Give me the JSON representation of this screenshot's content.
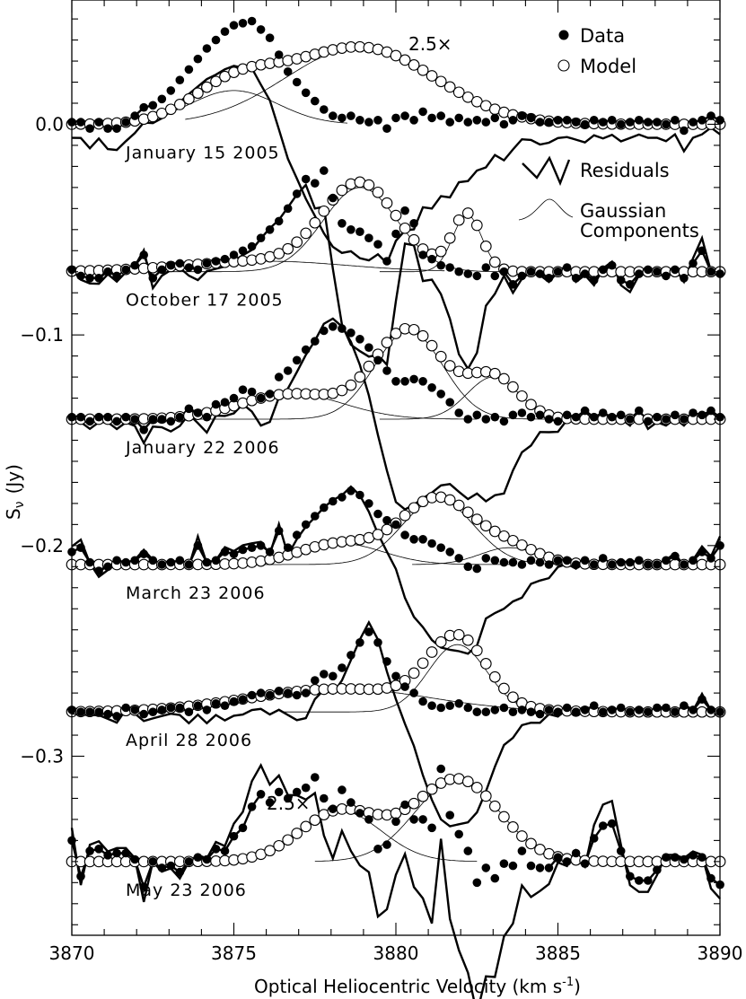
{
  "chart_data": {
    "type": "scatter",
    "xlabel": "Optical Heliocentric Velocity (km s",
    "xlabel_sup": "-1",
    "xlabel_close": ")",
    "ylabel": "S",
    "ylabel_sub": "ν",
    "ylabel_unit": "(Jy)",
    "xlim": [
      3870,
      3890
    ],
    "ylim": [
      -0.385,
      0.059
    ],
    "x_ticks": [
      3870,
      3875,
      3880,
      3885,
      3890
    ],
    "x_tick_labels": [
      "3870",
      "3875",
      "3880",
      "3885",
      "3890"
    ],
    "y_ticks": [
      0.0,
      -0.1,
      -0.2,
      -0.3
    ],
    "y_tick_labels": [
      "0.0",
      "−0.1",
      "−0.2",
      "−0.3"
    ],
    "legend": {
      "position": "top-right",
      "entries": [
        {
          "label": "Data",
          "marker": "filled-circle"
        },
        {
          "label": "Model",
          "marker": "open-circle"
        },
        {
          "label": "Residuals",
          "marker": "thick-line"
        },
        {
          "label": "Gaussian",
          "label2": "Components",
          "marker": "thin-line"
        }
      ]
    },
    "x_start": 3870,
    "x_step": 0.2778,
    "panels": [
      {
        "label": "January 15 2005",
        "offset": 0.0,
        "annotation": "2.5×",
        "residual_base": -0.008,
        "components": [
          {
            "amp": 0.0365,
            "center": 3878.9,
            "sigma": 2.3,
            "from": 3873.5,
            "to": 3885.5
          },
          {
            "amp": 0.016,
            "center": 3875.0,
            "sigma": 1.35,
            "from": 3871.5,
            "to": 3878.5
          }
        ],
        "data": [
          0.001,
          0.001,
          -0.002,
          0.001,
          -0.002,
          -0.002,
          0.001,
          0.004,
          0.008,
          0.009,
          0.012,
          0.016,
          0.021,
          0.026,
          0.031,
          0.036,
          0.04,
          0.044,
          0.047,
          0.048,
          0.049,
          0.045,
          0.041,
          0.033,
          0.025,
          0.02,
          0.015,
          0.011,
          0.007,
          0.004,
          0.003,
          0.004,
          0.002,
          0.001,
          0.002,
          -0.002,
          0.003,
          0.004,
          0.002,
          0.006,
          0.003,
          0.004,
          0.001,
          0.003,
          0.001,
          0.002,
          0.001,
          0.003,
          0.0,
          0.002,
          0.004,
          0.003,
          0.001,
          0.001,
          0.002,
          0.002,
          0.001,
          0.0,
          0.002,
          0.001,
          0.002,
          0.0,
          0.001,
          0.002,
          0.001,
          0.001,
          0.0,
          0.002,
          -0.003,
          0.001,
          0.002,
          0.004,
          0.002
        ]
      },
      {
        "label": "October 17 2005",
        "offset": -0.07,
        "residual_base": -0.07,
        "components": [
          {
            "amp": 0.04,
            "center": 3878.9,
            "sigma": 1.15,
            "from": 3871.5,
            "to": 3884.5
          },
          {
            "amp": 0.027,
            "center": 3882.2,
            "sigma": 0.45,
            "from": 3879.5,
            "to": 3884.5
          },
          {
            "amp": 0.005,
            "center": 3876.0,
            "sigma": 2.5,
            "from": 3870.5,
            "to": 3881.5
          }
        ],
        "data": [
          -0.069,
          -0.072,
          -0.073,
          -0.073,
          -0.07,
          -0.072,
          -0.069,
          -0.067,
          -0.062,
          -0.073,
          -0.069,
          -0.067,
          -0.066,
          -0.068,
          -0.069,
          -0.066,
          -0.065,
          -0.064,
          -0.062,
          -0.06,
          -0.058,
          -0.054,
          -0.05,
          -0.046,
          -0.04,
          -0.033,
          -0.026,
          -0.028,
          -0.022,
          -0.035,
          -0.047,
          -0.05,
          -0.051,
          -0.054,
          -0.057,
          -0.065,
          -0.052,
          -0.041,
          -0.047,
          -0.062,
          -0.064,
          -0.067,
          -0.068,
          -0.07,
          -0.071,
          -0.072,
          -0.068,
          -0.072,
          -0.07,
          -0.076,
          -0.072,
          -0.07,
          -0.071,
          -0.073,
          -0.07,
          -0.068,
          -0.073,
          -0.071,
          -0.074,
          -0.069,
          -0.067,
          -0.074,
          -0.076,
          -0.071,
          -0.069,
          -0.07,
          -0.072,
          -0.069,
          -0.073,
          -0.066,
          -0.06,
          -0.07,
          -0.071
        ]
      },
      {
        "label": "January 22 2006",
        "offset": -0.14,
        "residual_base": -0.143,
        "components": [
          {
            "amp": 0.042,
            "center": 3880.4,
            "sigma": 1.05,
            "from": 3872.5,
            "to": 3887.5
          },
          {
            "amp": 0.02,
            "center": 3883.0,
            "sigma": 0.8,
            "from": 3879.5,
            "to": 3886.5
          },
          {
            "amp": 0.012,
            "center": 3876.8,
            "sigma": 1.6,
            "from": 3872.5,
            "to": 3882.5
          }
        ],
        "data": [
          -0.139,
          -0.139,
          -0.141,
          -0.139,
          -0.139,
          -0.141,
          -0.139,
          -0.14,
          -0.145,
          -0.14,
          -0.14,
          -0.141,
          -0.139,
          -0.135,
          -0.137,
          -0.139,
          -0.133,
          -0.132,
          -0.13,
          -0.126,
          -0.127,
          -0.13,
          -0.128,
          -0.12,
          -0.117,
          -0.112,
          -0.107,
          -0.103,
          -0.098,
          -0.096,
          -0.097,
          -0.099,
          -0.102,
          -0.106,
          -0.112,
          -0.117,
          -0.122,
          -0.122,
          -0.121,
          -0.122,
          -0.125,
          -0.128,
          -0.132,
          -0.137,
          -0.14,
          -0.138,
          -0.14,
          -0.139,
          -0.141,
          -0.138,
          -0.137,
          -0.139,
          -0.138,
          -0.14,
          -0.141,
          -0.138,
          -0.139,
          -0.136,
          -0.139,
          -0.137,
          -0.139,
          -0.138,
          -0.14,
          -0.136,
          -0.141,
          -0.139,
          -0.14,
          -0.138,
          -0.14,
          -0.137,
          -0.138,
          -0.136,
          -0.139
        ]
      },
      {
        "label": "March 23 2006",
        "offset": -0.209,
        "residual_base": -0.21,
        "components": [
          {
            "amp": 0.031,
            "center": 3881.3,
            "sigma": 1.1,
            "from": 3873.5,
            "to": 3887.5
          },
          {
            "amp": 0.01,
            "center": 3878.3,
            "sigma": 1.3,
            "from": 3874.5,
            "to": 3883.5
          },
          {
            "amp": 0.008,
            "center": 3883.5,
            "sigma": 0.9,
            "from": 3880.5,
            "to": 3887.5
          }
        ],
        "data": [
          -0.203,
          -0.201,
          -0.208,
          -0.212,
          -0.21,
          -0.207,
          -0.208,
          -0.207,
          -0.204,
          -0.207,
          -0.209,
          -0.208,
          -0.207,
          -0.209,
          -0.2,
          -0.208,
          -0.207,
          -0.203,
          -0.204,
          -0.202,
          -0.201,
          -0.2,
          -0.203,
          -0.193,
          -0.201,
          -0.195,
          -0.19,
          -0.186,
          -0.182,
          -0.179,
          -0.177,
          -0.174,
          -0.176,
          -0.18,
          -0.185,
          -0.188,
          -0.19,
          -0.195,
          -0.197,
          -0.197,
          -0.199,
          -0.201,
          -0.203,
          -0.206,
          -0.21,
          -0.211,
          -0.206,
          -0.207,
          -0.208,
          -0.208,
          -0.209,
          -0.207,
          -0.208,
          -0.209,
          -0.207,
          -0.207,
          -0.209,
          -0.207,
          -0.209,
          -0.206,
          -0.209,
          -0.208,
          -0.208,
          -0.207,
          -0.209,
          -0.209,
          -0.207,
          -0.205,
          -0.209,
          -0.207,
          -0.203,
          -0.206,
          -0.2
        ]
      },
      {
        "label": "April 28 2006",
        "offset": -0.279,
        "residual_base": -0.28,
        "components": [
          {
            "amp": 0.032,
            "center": 3881.9,
            "sigma": 0.9,
            "from": 3876.5,
            "to": 3887.5
          },
          {
            "amp": 0.011,
            "center": 3878.3,
            "sigma": 2.8,
            "from": 3870.5,
            "to": 3884.5
          }
        ],
        "data": [
          -0.278,
          -0.279,
          -0.279,
          -0.279,
          -0.28,
          -0.281,
          -0.277,
          -0.278,
          -0.28,
          -0.279,
          -0.278,
          -0.277,
          -0.277,
          -0.279,
          -0.276,
          -0.278,
          -0.275,
          -0.276,
          -0.274,
          -0.273,
          -0.271,
          -0.27,
          -0.271,
          -0.269,
          -0.27,
          -0.271,
          -0.27,
          -0.264,
          -0.261,
          -0.262,
          -0.258,
          -0.252,
          -0.246,
          -0.241,
          -0.246,
          -0.255,
          -0.262,
          -0.267,
          -0.27,
          -0.274,
          -0.276,
          -0.277,
          -0.276,
          -0.275,
          -0.277,
          -0.279,
          -0.279,
          -0.278,
          -0.277,
          -0.279,
          -0.278,
          -0.279,
          -0.28,
          -0.278,
          -0.279,
          -0.277,
          -0.279,
          -0.278,
          -0.276,
          -0.279,
          -0.278,
          -0.277,
          -0.279,
          -0.278,
          -0.279,
          -0.277,
          -0.277,
          -0.279,
          -0.276,
          -0.278,
          -0.273,
          -0.278,
          -0.279
        ]
      },
      {
        "label": "May 23 2006",
        "offset": -0.35,
        "annotation": "2.5×",
        "residual_base": -0.35,
        "components": [
          {
            "amp": 0.039,
            "center": 3881.9,
            "sigma": 1.3,
            "from": 3877.5,
            "to": 3888.5
          },
          {
            "amp": 0.024,
            "center": 3878.3,
            "sigma": 1.25,
            "from": 3873.5,
            "to": 3882.5
          }
        ],
        "data": [
          -0.34,
          -0.357,
          -0.345,
          -0.344,
          -0.347,
          -0.346,
          -0.346,
          -0.349,
          -0.362,
          -0.35,
          -0.353,
          -0.352,
          -0.355,
          -0.35,
          -0.348,
          -0.349,
          -0.344,
          -0.345,
          -0.338,
          -0.334,
          -0.324,
          -0.318,
          -0.322,
          -0.317,
          -0.32,
          -0.317,
          -0.315,
          -0.31,
          -0.32,
          -0.325,
          -0.316,
          -0.322,
          -0.327,
          -0.33,
          -0.344,
          -0.342,
          -0.331,
          -0.323,
          -0.33,
          -0.33,
          -0.334,
          -0.306,
          -0.328,
          -0.337,
          -0.345,
          -0.36,
          -0.353,
          -0.358,
          -0.351,
          -0.352,
          -0.345,
          -0.352,
          -0.353,
          -0.353,
          -0.348,
          -0.35,
          -0.346,
          -0.351,
          -0.339,
          -0.333,
          -0.332,
          -0.345,
          -0.357,
          -0.359,
          -0.359,
          -0.354,
          -0.348,
          -0.348,
          -0.349,
          -0.347,
          -0.348,
          -0.358,
          -0.361
        ]
      }
    ]
  }
}
